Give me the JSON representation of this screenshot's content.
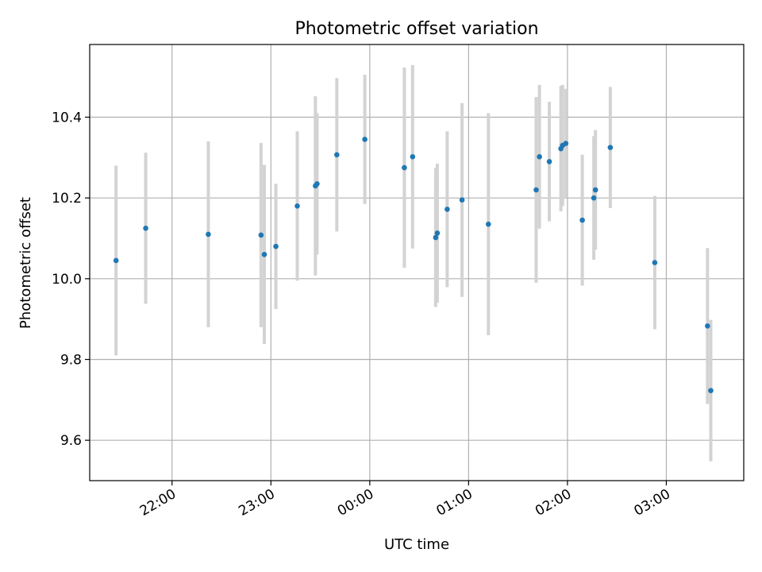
{
  "chart_data": {
    "type": "scatter",
    "title": "Photometric offset variation",
    "xlabel": "UTC time",
    "ylabel": "Photometric offset",
    "xlim": [
      "21:10",
      "03:47"
    ],
    "ylim": [
      9.5,
      10.58
    ],
    "grid": true,
    "x_ticks": [
      "22:00",
      "23:00",
      "00:00",
      "01:00",
      "02:00",
      "03:00"
    ],
    "y_ticks": [
      9.6,
      9.8,
      10.0,
      10.2,
      10.4
    ],
    "y_tick_labels": [
      "9.6",
      "9.8",
      "10.0",
      "10.2",
      "10.4"
    ],
    "marker_color": "#1f77b4",
    "errorbar_color": "#d3d3d3",
    "points": [
      {
        "time": "21:26",
        "y": 10.045,
        "err": 0.235
      },
      {
        "time": "21:44",
        "y": 10.125,
        "err": 0.187
      },
      {
        "time": "22:22",
        "y": 10.11,
        "err": 0.23
      },
      {
        "time": "22:54",
        "y": 10.108,
        "err": 0.228
      },
      {
        "time": "22:56",
        "y": 10.06,
        "err": 0.222
      },
      {
        "time": "23:03",
        "y": 10.08,
        "err": 0.155
      },
      {
        "time": "23:16",
        "y": 10.18,
        "err": 0.185
      },
      {
        "time": "23:27",
        "y": 10.23,
        "err": 0.222
      },
      {
        "time": "23:28",
        "y": 10.235,
        "err": 0.175
      },
      {
        "time": "23:40",
        "y": 10.307,
        "err": 0.19
      },
      {
        "time": "23:57",
        "y": 10.345,
        "err": 0.16
      },
      {
        "time": "00:21",
        "y": 10.275,
        "err": 0.248
      },
      {
        "time": "00:26",
        "y": 10.302,
        "err": 0.227
      },
      {
        "time": "00:40",
        "y": 10.102,
        "err": 0.172
      },
      {
        "time": "00:41",
        "y": 10.113,
        "err": 0.172
      },
      {
        "time": "00:47",
        "y": 10.172,
        "err": 0.193
      },
      {
        "time": "00:56",
        "y": 10.195,
        "err": 0.24
      },
      {
        "time": "01:12",
        "y": 10.135,
        "err": 0.275
      },
      {
        "time": "01:41",
        "y": 10.22,
        "err": 0.23
      },
      {
        "time": "01:43",
        "y": 10.302,
        "err": 0.178
      },
      {
        "time": "01:49",
        "y": 10.29,
        "err": 0.148
      },
      {
        "time": "01:56",
        "y": 10.322,
        "err": 0.155
      },
      {
        "time": "01:57",
        "y": 10.33,
        "err": 0.15
      },
      {
        "time": "01:59",
        "y": 10.335,
        "err": 0.135
      },
      {
        "time": "02:09",
        "y": 10.145,
        "err": 0.162
      },
      {
        "time": "02:16",
        "y": 10.2,
        "err": 0.153
      },
      {
        "time": "02:17",
        "y": 10.22,
        "err": 0.148
      },
      {
        "time": "02:26",
        "y": 10.325,
        "err": 0.15
      },
      {
        "time": "02:53",
        "y": 10.04,
        "err": 0.165
      },
      {
        "time": "03:25",
        "y": 9.883,
        "err": 0.193
      },
      {
        "time": "03:27",
        "y": 9.723,
        "err": 0.175
      }
    ]
  }
}
